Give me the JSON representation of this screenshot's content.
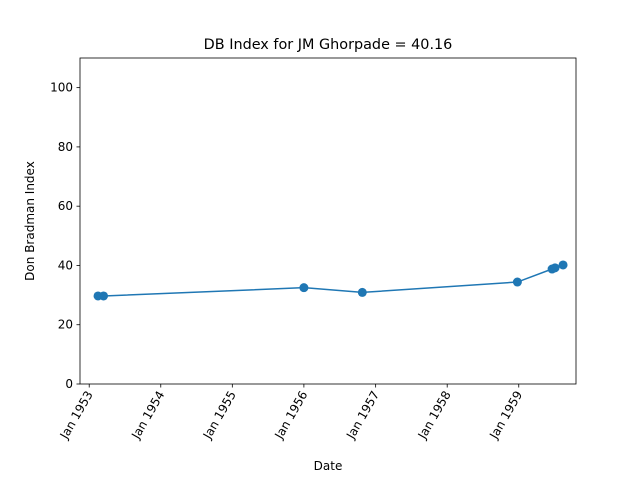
{
  "chart_data": {
    "type": "line",
    "title": "DB Index for JM Ghorpade = 40.16",
    "xlabel": "Date",
    "ylabel": "Don Bradman Index",
    "x_tick_labels": [
      "Jan 1953",
      "Jan 1954",
      "Jan 1955",
      "Jan 1956",
      "Jan 1957",
      "Jan 1958",
      "Jan 1959"
    ],
    "x_tick_dates": [
      "1953-01-01",
      "1954-01-01",
      "1955-01-01",
      "1956-01-01",
      "1957-01-01",
      "1958-01-01",
      "1959-01-01"
    ],
    "xlim": [
      "1952-11-15",
      "1959-10-20"
    ],
    "y_tick_labels": [
      "0",
      "20",
      "40",
      "60",
      "80",
      "100"
    ],
    "y_tick_values": [
      0,
      20,
      40,
      60,
      80,
      100
    ],
    "ylim": [
      0,
      110
    ],
    "grid": false,
    "series": [
      {
        "color": "#1f77b4",
        "marker": "circle",
        "points": [
          {
            "x": "1953-02-15",
            "y": 29.7
          },
          {
            "x": "1953-03-15",
            "y": 29.7
          },
          {
            "x": "1956-01-01",
            "y": 32.5
          },
          {
            "x": "1956-10-25",
            "y": 30.9
          },
          {
            "x": "1958-12-25",
            "y": 34.4
          },
          {
            "x": "1959-06-20",
            "y": 38.8
          },
          {
            "x": "1959-07-05",
            "y": 39.2
          },
          {
            "x": "1959-08-15",
            "y": 40.16
          }
        ]
      }
    ]
  }
}
